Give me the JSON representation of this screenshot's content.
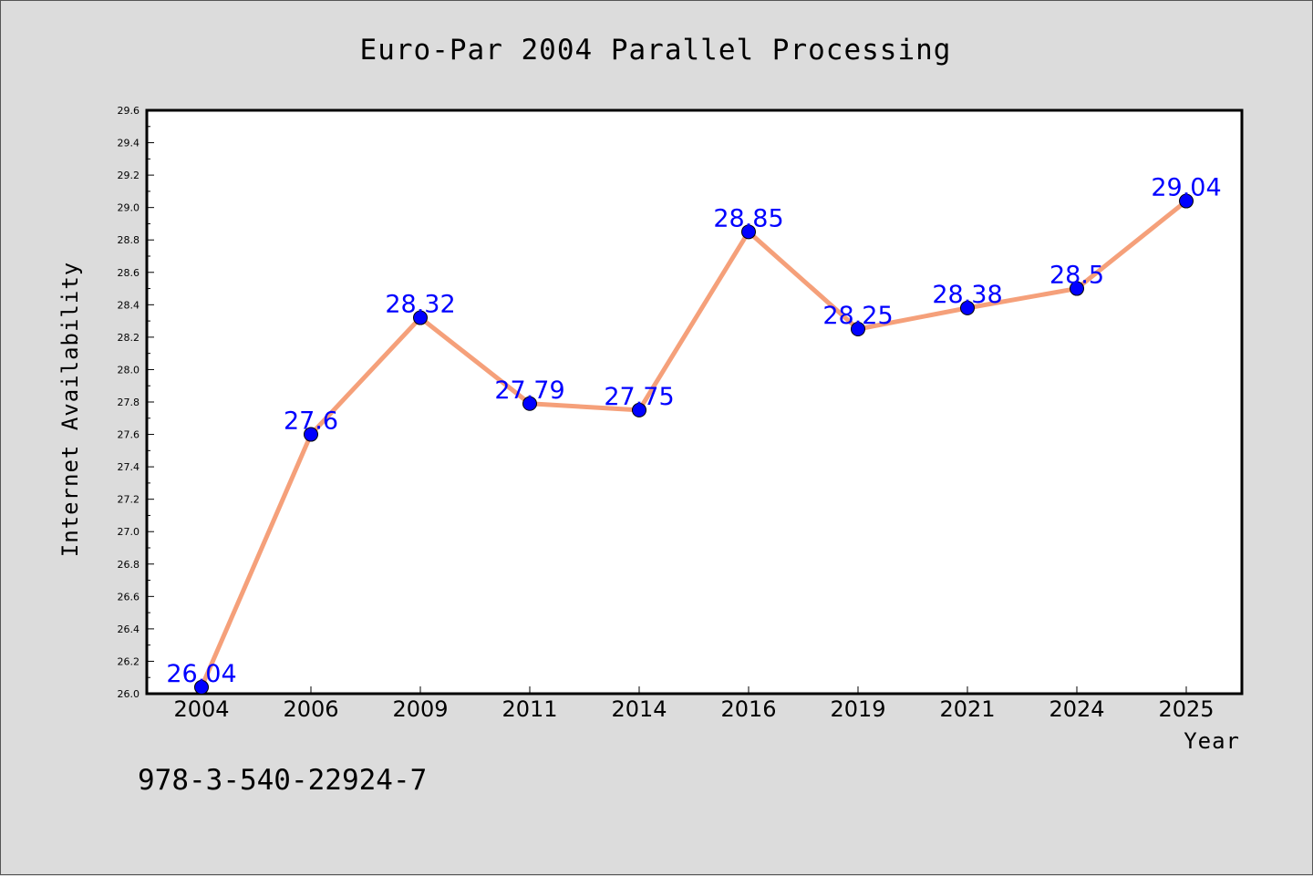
{
  "chart_data": {
    "type": "line",
    "title": "Euro-Par 2004 Parallel Processing",
    "xlabel": "Year",
    "ylabel": "Internet Availability",
    "categories": [
      "2004",
      "2006",
      "2009",
      "2011",
      "2014",
      "2016",
      "2019",
      "2021",
      "2024",
      "2025"
    ],
    "values": [
      26.04,
      27.6,
      28.32,
      27.79,
      27.75,
      28.85,
      28.25,
      28.38,
      28.5,
      29.04
    ],
    "data_labels": [
      "26.04",
      "27.6",
      "28.32",
      "27.79",
      "27.75",
      "28.85",
      "28.25",
      "28.38",
      "28.5",
      "29.04"
    ],
    "ylim": [
      26.0,
      29.6
    ],
    "yticks": [
      "26.0",
      "26.2",
      "26.4",
      "26.6",
      "26.8",
      "27.0",
      "27.2",
      "27.4",
      "27.6",
      "27.8",
      "28.0",
      "28.2",
      "28.4",
      "28.6",
      "28.8",
      "29.0",
      "29.2",
      "29.4",
      "29.6"
    ],
    "grid": false,
    "legend": "none",
    "line_color": "#f5a07a",
    "marker_color": "#0000ff",
    "label_color": "#0000ff",
    "background_color": "#dcdcdc",
    "plot_background": "#ffffff"
  },
  "footer_text": "978-3-540-22924-7"
}
